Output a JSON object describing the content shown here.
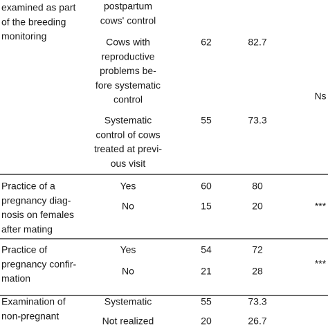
{
  "table": {
    "rows": [
      {
        "label": [
          "examined as part",
          "of the breeding",
          "monitoring"
        ],
        "items": [
          {
            "answer": [
              "postpartum",
              "cows' control"
            ]
          },
          {
            "answer": [
              "Cows with",
              "reproductive",
              "problems be-",
              "fore systematic",
              "control"
            ],
            "n": 62,
            "pct": 82.7
          },
          {
            "answer": [
              "Systematic",
              "control of cows",
              "treated at previ-",
              "ous visit"
            ],
            "n": 55,
            "pct": 73.3
          }
        ],
        "sig": "Ns"
      },
      {
        "label": [
          "Practice of a",
          "pregnancy diag-",
          "nosis on females",
          "after mating"
        ],
        "items": [
          {
            "answer": [
              "Yes"
            ],
            "n": 60,
            "pct": 80
          },
          {
            "answer": [
              "No"
            ],
            "n": 15,
            "pct": 20
          }
        ],
        "sig": "***"
      },
      {
        "label": [
          "Practice of",
          "pregnancy confir-",
          "mation"
        ],
        "items": [
          {
            "answer": [
              "Yes"
            ],
            "n": 54,
            "pct": 72
          },
          {
            "answer": [
              "No"
            ],
            "n": 21,
            "pct": 28
          }
        ],
        "sig": "***"
      },
      {
        "label": [
          "Examination of",
          "non-pregnant"
        ],
        "items": [
          {
            "answer": [
              "Systematic"
            ],
            "n": 55,
            "pct": 73.3
          },
          {
            "answer": [
              "Not realized"
            ],
            "n": 20,
            "pct": 26.7
          }
        ]
      }
    ]
  }
}
